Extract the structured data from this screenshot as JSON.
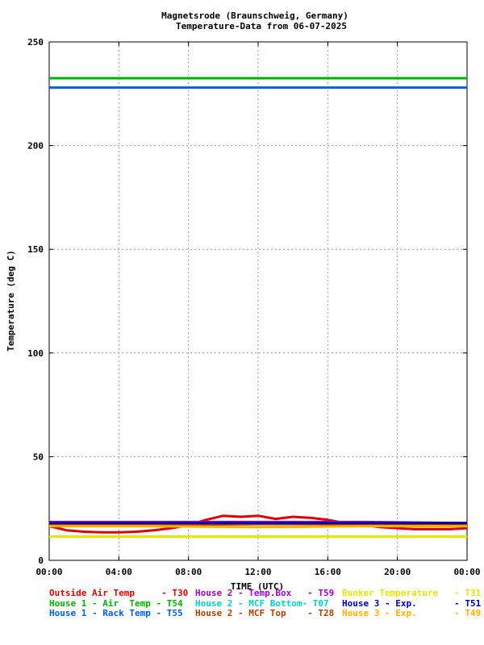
{
  "chart_data": {
    "type": "line",
    "title": "Magnetsrode (Braunschweig, Germany)",
    "subtitle": "Temperature-Data from 06-07-2025",
    "xlabel": "TIME (UTC)",
    "ylabel": "Temperature (deg C)",
    "xlim": [
      0,
      24
    ],
    "ylim": [
      0,
      250
    ],
    "x_ticks": [
      0,
      4,
      8,
      12,
      16,
      20,
      24
    ],
    "x_tick_labels": [
      "00:00",
      "04:00",
      "08:00",
      "12:00",
      "16:00",
      "20:00",
      "00:00"
    ],
    "y_ticks": [
      0,
      50,
      100,
      150,
      200,
      250
    ],
    "y_tick_labels": [
      "0",
      "50",
      "100",
      "150",
      "200",
      "250"
    ],
    "grid": true,
    "legend_placement": "bottom",
    "series": [
      {
        "name": "Outside Air Temp     - T30",
        "color": "#e00000",
        "x": [
          0,
          1,
          2,
          3,
          4,
          5,
          6,
          7,
          8,
          9,
          10,
          11,
          12,
          13,
          14,
          15,
          16,
          17,
          18,
          19,
          20,
          21,
          22,
          23,
          24
        ],
        "y": [
          16.5,
          14.5,
          13.8,
          13.5,
          13.5,
          13.8,
          14.5,
          15.5,
          17,
          19.5,
          21.5,
          21,
          21.5,
          20,
          21,
          20.5,
          19.5,
          18,
          17,
          16,
          15.5,
          15,
          15,
          15,
          15.5
        ]
      },
      {
        "name": "House 1 - Air  Temp - T54",
        "color": "#00b000",
        "x": [
          0,
          24
        ],
        "y": [
          232.5,
          232.5
        ]
      },
      {
        "name": "House 1 - Rack Temp - T55",
        "color": "#0060e0",
        "x": [
          0,
          24
        ],
        "y": [
          228,
          228
        ]
      },
      {
        "name": "House 2 - Temp.Box   - T59",
        "color": "#a000d0",
        "x": [
          0,
          6,
          12,
          18,
          24
        ],
        "y": [
          18.5,
          18.5,
          18.5,
          18.5,
          18
        ]
      },
      {
        "name": "House 2 - MCF Bottom- T07",
        "color": "#00d0d0",
        "x": [
          0,
          6,
          12,
          18,
          24
        ],
        "y": [
          17.5,
          17.5,
          17.5,
          17.5,
          17.5
        ]
      },
      {
        "name": "House 2 - MCF Top    - T28",
        "color": "#b04000",
        "x": [
          0,
          6,
          12,
          18,
          24
        ],
        "y": [
          17,
          17,
          17.5,
          17.5,
          17
        ]
      },
      {
        "name": "Bunker Temperature   - T31",
        "color": "#e6e600",
        "x": [
          0,
          24
        ],
        "y": [
          11.5,
          11.5
        ]
      },
      {
        "name": "House 3 - Exp.       - T51",
        "color": "#0000a0",
        "x": [
          0,
          6,
          12,
          18,
          24
        ],
        "y": [
          18,
          18,
          18,
          18,
          18
        ]
      },
      {
        "name": "House 3 - Exp.       - T49",
        "color": "#ffb000",
        "x": [
          0,
          6,
          12,
          18,
          24
        ],
        "y": [
          16.5,
          16.5,
          16,
          16.5,
          16.5
        ]
      }
    ]
  }
}
